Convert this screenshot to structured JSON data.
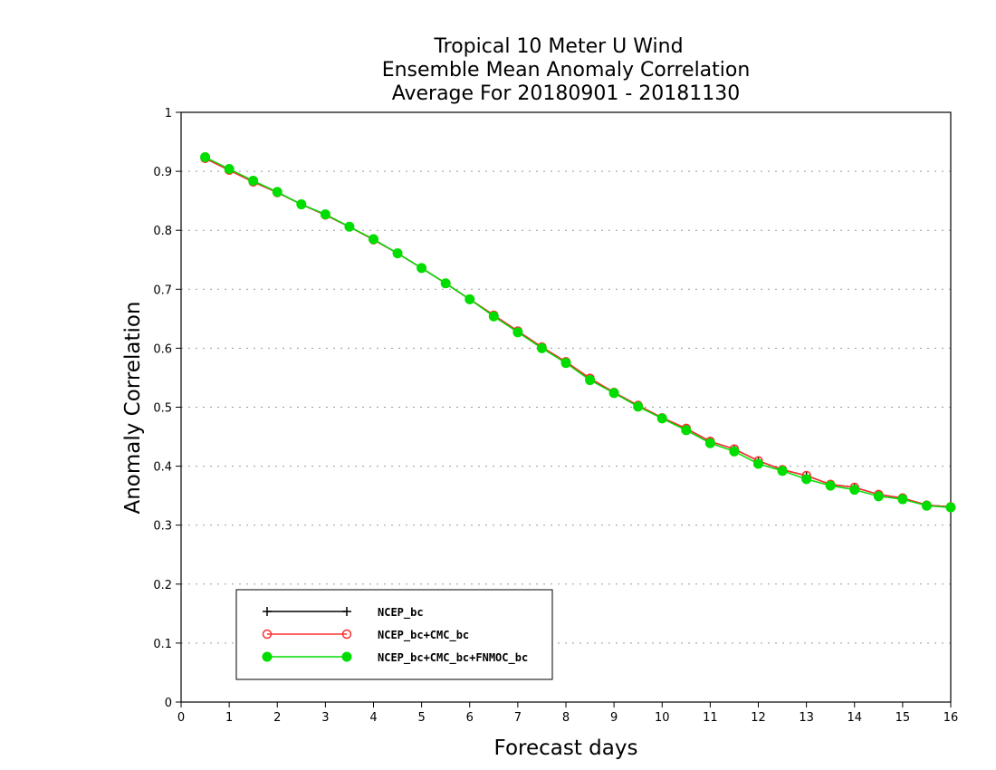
{
  "chart_data": {
    "type": "line",
    "title": [
      "Tropical 10 Meter U Wind",
      "Ensemble Mean Anomaly Correlation",
      "Average For 20180901 - 20181130"
    ],
    "xlabel": "Forecast days",
    "ylabel": "Anomaly Correlation",
    "xlim": [
      0,
      16
    ],
    "ylim": [
      0,
      1
    ],
    "xticks": [
      "0",
      "1",
      "2",
      "3",
      "4",
      "5",
      "6",
      "7",
      "8",
      "9",
      "10",
      "11",
      "12",
      "13",
      "14",
      "15",
      "16"
    ],
    "yticks": [
      "0",
      "0.1",
      "0.2",
      "0.3",
      "0.4",
      "0.5",
      "0.6",
      "0.7",
      "0.8",
      "0.9",
      "1"
    ],
    "grid": "horizontal dotted",
    "legend_position": "bottom-left",
    "x": [
      0.5,
      1,
      1.5,
      2,
      2.5,
      3,
      3.5,
      4,
      4.5,
      5,
      5.5,
      6,
      6.5,
      7,
      7.5,
      8,
      8.5,
      9,
      9.5,
      10,
      10.5,
      11,
      11.5,
      12,
      12.5,
      13,
      13.5,
      14,
      14.5,
      15,
      15.5,
      16
    ],
    "series": [
      {
        "name": "NCEP_bc",
        "color": "#000000",
        "marker": "plus",
        "values": [
          0.922,
          0.902,
          0.882,
          0.864,
          0.844,
          0.826,
          0.806,
          0.784,
          0.761,
          0.736,
          0.71,
          0.683,
          0.656,
          0.629,
          0.602,
          0.577,
          0.549,
          0.525,
          0.503,
          0.482,
          0.464,
          0.442,
          0.429,
          0.409,
          0.394,
          0.384,
          0.369,
          0.364,
          0.352,
          0.346,
          0.334,
          0.331
        ]
      },
      {
        "name": "NCEP_bc+CMC_bc",
        "color": "#ff3030",
        "marker": "open-circle",
        "values": [
          0.922,
          0.902,
          0.882,
          0.864,
          0.844,
          0.826,
          0.806,
          0.784,
          0.761,
          0.736,
          0.71,
          0.683,
          0.656,
          0.629,
          0.602,
          0.577,
          0.549,
          0.525,
          0.503,
          0.482,
          0.464,
          0.442,
          0.429,
          0.409,
          0.394,
          0.384,
          0.369,
          0.364,
          0.352,
          0.346,
          0.334,
          0.331
        ]
      },
      {
        "name": "NCEP_bc+CMC_bc+FNMOC_bc",
        "color": "#00dd00",
        "marker": "filled-circle",
        "values": [
          0.924,
          0.904,
          0.884,
          0.865,
          0.844,
          0.827,
          0.806,
          0.785,
          0.761,
          0.736,
          0.71,
          0.683,
          0.654,
          0.627,
          0.6,
          0.575,
          0.546,
          0.524,
          0.501,
          0.481,
          0.461,
          0.439,
          0.425,
          0.404,
          0.392,
          0.378,
          0.367,
          0.36,
          0.349,
          0.344,
          0.333,
          0.33
        ]
      }
    ]
  }
}
